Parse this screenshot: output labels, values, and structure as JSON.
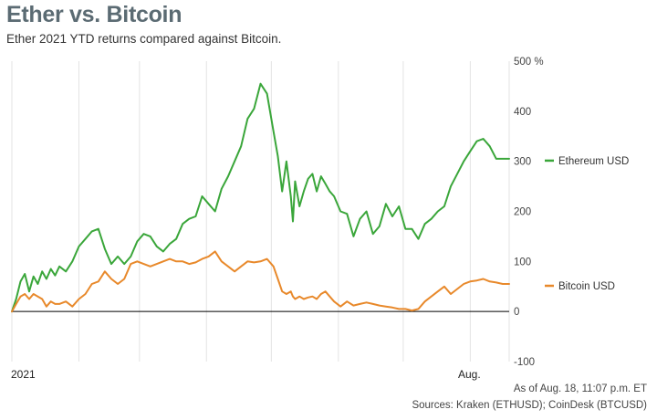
{
  "header": {
    "title": "Ether vs. Bitcoin",
    "subtitle": "Ether 2021 YTD returns compared against Bitcoin."
  },
  "footer": {
    "timestamp": "As of Aug. 18, 11:07 p.m. ET",
    "sources": "Sources: Kraken (ETHUSD); CoinDesk (BTCUSD)"
  },
  "colors": {
    "ethereum": "#3aa63a",
    "bitcoin": "#e8892b",
    "grid": "#e3e3e3",
    "zero_line": "#000000"
  },
  "chart_data": {
    "type": "line",
    "title": "Ether vs. Bitcoin",
    "subtitle": "Ether 2021 YTD returns compared against Bitcoin.",
    "xlabel": "",
    "ylabel": "",
    "y_unit": "%",
    "x_unit": "day of year 2021",
    "xlim": [
      1,
      231
    ],
    "ylim": [
      -100,
      500
    ],
    "yticks": [
      -100,
      0,
      100,
      200,
      300,
      400,
      500
    ],
    "ytick_labels": [
      "-100",
      "0",
      "100",
      "200",
      "300",
      "400",
      "500 %"
    ],
    "xtick_labels": [
      {
        "day": 1,
        "label": "2021"
      },
      {
        "day": 213,
        "label": "Aug."
      }
    ],
    "legend": "right, labels at line ends",
    "grid": "vertical",
    "series": [
      {
        "name": "Ethereum USD",
        "x": [
          1,
          3,
          5,
          7,
          9,
          11,
          13,
          15,
          17,
          19,
          21,
          23,
          26,
          29,
          32,
          35,
          38,
          41,
          44,
          47,
          50,
          53,
          56,
          59,
          62,
          65,
          68,
          71,
          74,
          77,
          80,
          83,
          86,
          89,
          92,
          95,
          98,
          101,
          104,
          107,
          110,
          113,
          116,
          119,
          122,
          124,
          126,
          128,
          130,
          131,
          132,
          134,
          136,
          138,
          140,
          142,
          144,
          146,
          148,
          150,
          153,
          156,
          159,
          162,
          165,
          168,
          171,
          174,
          177,
          180,
          183,
          186,
          189,
          192,
          195,
          198,
          201,
          204,
          207,
          210,
          213,
          216,
          219,
          222,
          225,
          228,
          231
        ],
        "values": [
          0,
          25,
          60,
          75,
          40,
          70,
          55,
          80,
          65,
          85,
          72,
          90,
          80,
          100,
          130,
          145,
          160,
          165,
          125,
          95,
          110,
          95,
          110,
          140,
          155,
          150,
          130,
          120,
          135,
          145,
          175,
          185,
          190,
          230,
          215,
          200,
          245,
          270,
          300,
          330,
          385,
          405,
          455,
          435,
          360,
          310,
          240,
          300,
          230,
          180,
          260,
          210,
          240,
          265,
          275,
          240,
          270,
          255,
          240,
          230,
          200,
          195,
          150,
          185,
          200,
          155,
          170,
          215,
          190,
          210,
          165,
          165,
          145,
          175,
          185,
          200,
          210,
          250,
          275,
          300,
          320,
          340,
          345,
          330,
          305,
          305,
          305
        ]
      },
      {
        "name": "Bitcoin USD",
        "x": [
          1,
          3,
          5,
          7,
          9,
          11,
          13,
          15,
          17,
          19,
          21,
          23,
          26,
          29,
          32,
          35,
          38,
          41,
          44,
          47,
          50,
          53,
          56,
          59,
          62,
          65,
          68,
          71,
          74,
          77,
          80,
          83,
          86,
          89,
          92,
          95,
          98,
          101,
          104,
          107,
          110,
          113,
          116,
          119,
          122,
          124,
          126,
          128,
          130,
          131,
          132,
          134,
          136,
          138,
          140,
          142,
          144,
          146,
          148,
          150,
          153,
          156,
          159,
          162,
          165,
          168,
          171,
          174,
          177,
          180,
          183,
          186,
          189,
          192,
          195,
          198,
          201,
          204,
          207,
          210,
          213,
          216,
          219,
          222,
          225,
          228,
          231
        ],
        "values": [
          0,
          15,
          30,
          35,
          25,
          35,
          30,
          25,
          10,
          20,
          15,
          15,
          20,
          10,
          25,
          35,
          55,
          60,
          80,
          65,
          55,
          65,
          95,
          100,
          95,
          90,
          95,
          100,
          105,
          100,
          100,
          95,
          98,
          105,
          110,
          120,
          100,
          90,
          80,
          90,
          100,
          98,
          100,
          105,
          90,
          65,
          40,
          35,
          40,
          30,
          25,
          30,
          25,
          28,
          30,
          25,
          35,
          40,
          30,
          20,
          10,
          20,
          12,
          15,
          18,
          15,
          12,
          10,
          8,
          5,
          5,
          2,
          5,
          20,
          30,
          40,
          50,
          35,
          45,
          55,
          60,
          62,
          65,
          60,
          58,
          55,
          55
        ]
      }
    ]
  }
}
